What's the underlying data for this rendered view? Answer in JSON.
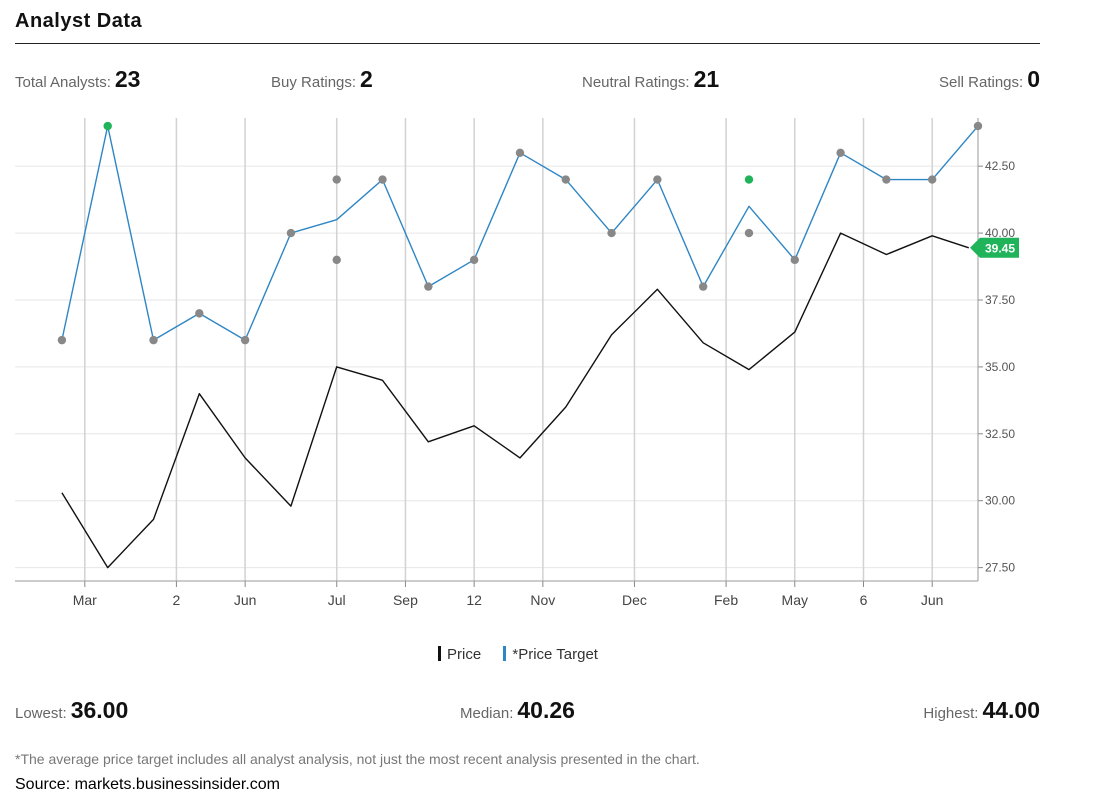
{
  "header": {
    "title": "Analyst Data"
  },
  "stats": {
    "total_label": "Total Analysts:",
    "total_value": "23",
    "buy_label": "Buy Ratings:",
    "buy_value": "2",
    "neutral_label": "Neutral Ratings:",
    "neutral_value": "21",
    "sell_label": "Sell Ratings:",
    "sell_value": "0"
  },
  "legend": {
    "price_label": "Price",
    "target_label": "*Price Target"
  },
  "summary": {
    "lowest_label": "Lowest:",
    "lowest_value": "36.00",
    "median_label": "Median:",
    "median_value": "40.26",
    "highest_label": "Highest:",
    "highest_value": "44.00"
  },
  "footnote": "*The average price target includes all analyst analysis, not just the most recent analysis presented in the chart.",
  "source": "Source: markets.businessinsider.com",
  "colors": {
    "price_line": "#111111",
    "target_line": "#2f86c4",
    "neutral_dot": "#888888",
    "buy_dot": "#1fb35a",
    "current_badge": "#1fb35a",
    "grid": "#e6e6e6",
    "vgrid": "#d2d2d2"
  },
  "chart_data": {
    "type": "line",
    "ylim": [
      27,
      44.3
    ],
    "y_ticks": [
      27.5,
      30,
      32.5,
      35,
      37.5,
      40,
      42.5
    ],
    "y_tick_labels": [
      "27.50",
      "30.00",
      "32.50",
      "35.00",
      "37.50",
      "40.00",
      "42.50"
    ],
    "x_ticks": [
      1,
      3,
      4.5,
      6.5,
      8,
      9.5,
      11,
      13,
      15,
      16.5,
      18,
      19.5
    ],
    "x_tick_labels": [
      "Mar",
      "2",
      "Jun",
      "Jul",
      "Sep",
      "12",
      "Nov",
      "Dec",
      "Feb",
      "May",
      "6",
      "Jun"
    ],
    "xlim": [
      0,
      20.5
    ],
    "series": [
      {
        "name": "Price",
        "x": [
          0.5,
          1.5,
          2.5,
          3.5,
          4.5,
          5.5,
          6.5,
          7.5,
          8.5,
          9.5,
          10.5,
          11.5,
          12.5,
          13.5,
          14.5,
          15.5,
          16.5,
          17.5,
          18.5,
          19.5,
          20.3
        ],
        "values": [
          30.3,
          27.5,
          29.3,
          34.0,
          31.6,
          29.8,
          35.0,
          34.5,
          32.2,
          32.8,
          31.6,
          33.5,
          36.2,
          37.9,
          35.9,
          34.9,
          36.3,
          40.0,
          39.2,
          39.9,
          39.45
        ]
      },
      {
        "name": "*Price Target",
        "x": [
          0.5,
          1.5,
          2.5,
          3.5,
          4.5,
          5.5,
          6.5,
          7.5,
          8.5,
          9.5,
          10.5,
          11.5,
          12.5,
          13.5,
          14.5,
          15.5,
          16.5,
          17.5,
          18.5,
          19.5,
          20.5
        ],
        "values": [
          36,
          44,
          36,
          37,
          36,
          40,
          40.5,
          42,
          38,
          39,
          43,
          42,
          40,
          42,
          38,
          41,
          39,
          43,
          42,
          42,
          44
        ]
      }
    ],
    "ratings": [
      {
        "x": 0.5,
        "y": 36,
        "rating": "neutral"
      },
      {
        "x": 1.5,
        "y": 44,
        "rating": "buy"
      },
      {
        "x": 2.5,
        "y": 36,
        "rating": "neutral"
      },
      {
        "x": 3.5,
        "y": 37,
        "rating": "neutral"
      },
      {
        "x": 4.5,
        "y": 36,
        "rating": "neutral"
      },
      {
        "x": 5.5,
        "y": 40,
        "rating": "neutral"
      },
      {
        "x": 6.5,
        "y": 42,
        "rating": "neutral"
      },
      {
        "x": 6.5,
        "y": 39,
        "rating": "neutral"
      },
      {
        "x": 7.5,
        "y": 42,
        "rating": "neutral"
      },
      {
        "x": 8.5,
        "y": 38,
        "rating": "neutral"
      },
      {
        "x": 9.5,
        "y": 39,
        "rating": "neutral"
      },
      {
        "x": 10.5,
        "y": 43,
        "rating": "neutral"
      },
      {
        "x": 11.5,
        "y": 42,
        "rating": "neutral"
      },
      {
        "x": 12.5,
        "y": 40,
        "rating": "neutral"
      },
      {
        "x": 13.5,
        "y": 42,
        "rating": "neutral"
      },
      {
        "x": 14.5,
        "y": 38,
        "rating": "neutral"
      },
      {
        "x": 15.5,
        "y": 42,
        "rating": "buy"
      },
      {
        "x": 15.5,
        "y": 40,
        "rating": "neutral"
      },
      {
        "x": 16.5,
        "y": 39,
        "rating": "neutral"
      },
      {
        "x": 17.5,
        "y": 43,
        "rating": "neutral"
      },
      {
        "x": 18.5,
        "y": 42,
        "rating": "neutral"
      },
      {
        "x": 19.5,
        "y": 42,
        "rating": "neutral"
      },
      {
        "x": 20.5,
        "y": 44,
        "rating": "neutral"
      }
    ],
    "current_price": {
      "value": 39.45,
      "label": "39.45"
    },
    "grid": true
  }
}
